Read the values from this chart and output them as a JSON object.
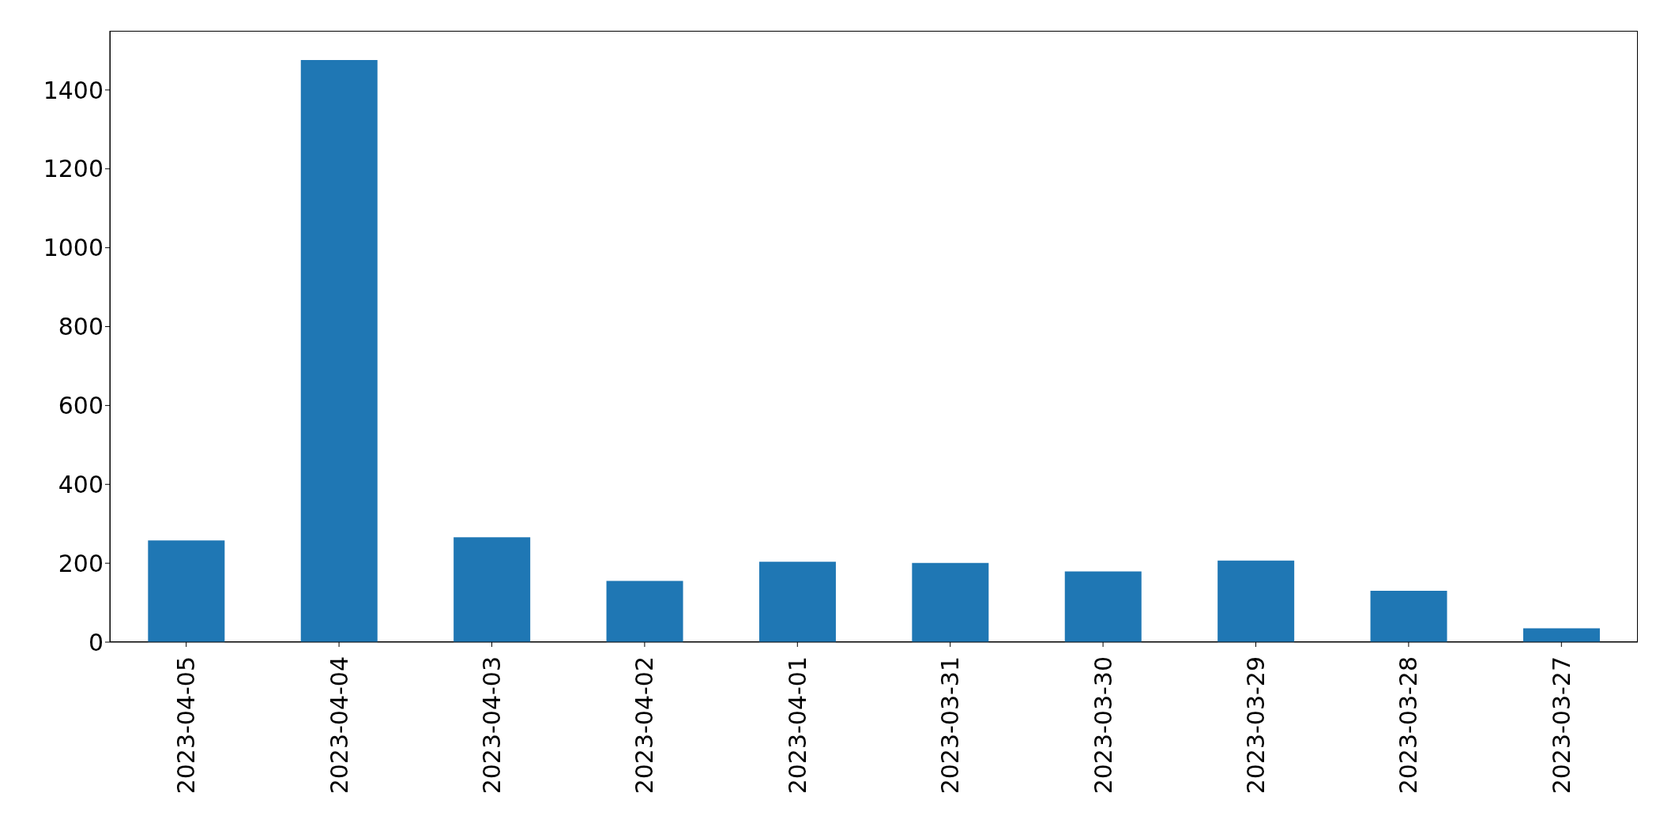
{
  "chart_data": {
    "type": "bar",
    "categories": [
      "2023-04-05",
      "2023-04-04",
      "2023-04-03",
      "2023-04-02",
      "2023-04-01",
      "2023-03-31",
      "2023-03-30",
      "2023-03-29",
      "2023-03-28",
      "2023-03-27"
    ],
    "values": [
      258,
      1476,
      266,
      155,
      204,
      201,
      179,
      207,
      130,
      35
    ],
    "color": "#1f77b4",
    "ylim": [
      0,
      1550
    ],
    "yticks": [
      0,
      200,
      400,
      600,
      800,
      1000,
      1200,
      1400
    ],
    "grid": false
  }
}
